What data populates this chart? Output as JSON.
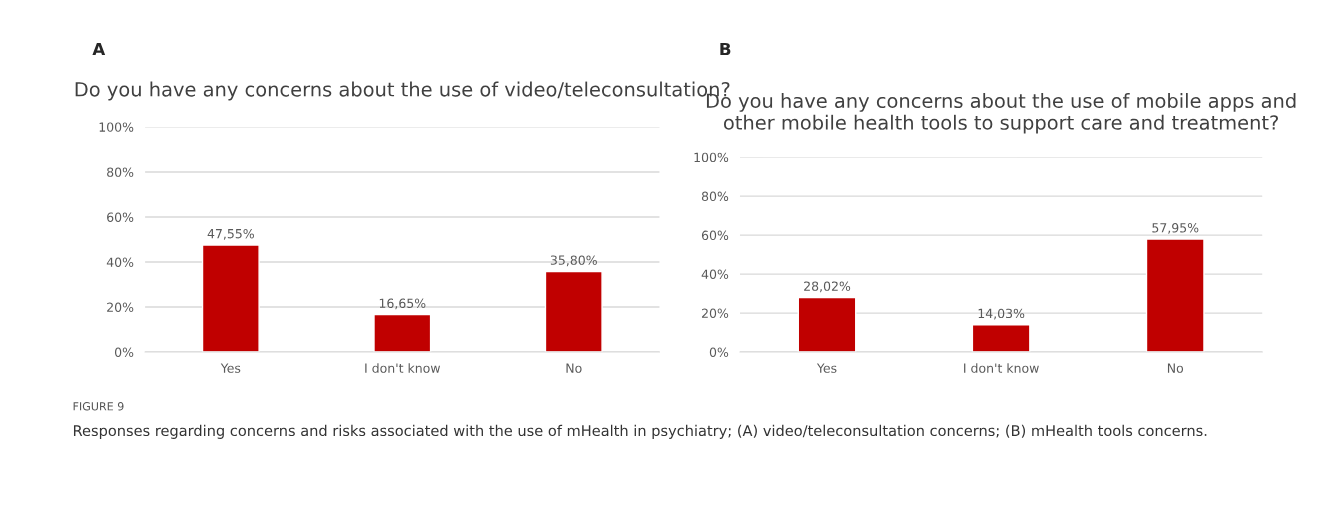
{
  "chart_data": [
    {
      "type": "bar",
      "title": "Do you have any concerns about the use of video/teleconsultation?",
      "categories": [
        "Yes",
        "I don't know",
        "No"
      ],
      "values": [
        47.55,
        16.65,
        35.8
      ],
      "value_labels": [
        "47,55%",
        "16,65%",
        "35,80%"
      ],
      "color": "#c00000",
      "ylim": [
        0,
        100
      ],
      "yticks": [
        {
          "value": 0,
          "label": "0%"
        },
        {
          "value": 20,
          "label": "20%"
        },
        {
          "value": 40,
          "label": "40%"
        },
        {
          "value": 60,
          "label": "60%"
        },
        {
          "value": 80,
          "label": "80%"
        },
        {
          "value": 100,
          "label": "100%"
        }
      ],
      "grid": "y",
      "annotations": [
        "A",
        "FIGURE 9",
        "Responses regarding concerns and risks associated with the use of mHealth in psychiatry; (A) video/teleconsultation concerns; (B) mHealth tools concerns."
      ]
    },
    {
      "type": "bar",
      "title": "Do you have any concerns about the use of mobile apps and other mobile health tools to support care and treatment?",
      "categories": [
        "Yes",
        "I don't know",
        "No"
      ],
      "values": [
        28.02,
        14.03,
        57.95
      ],
      "value_labels": [
        "28,02%",
        "14,03%",
        "57,95%"
      ],
      "color": "#c00000",
      "ylim": [
        0,
        100
      ],
      "yticks": [
        {
          "value": 0,
          "label": "0%"
        },
        {
          "value": 20,
          "label": "20%"
        },
        {
          "value": 40,
          "label": "40%"
        },
        {
          "value": 60,
          "label": "60%"
        },
        {
          "value": 80,
          "label": "80%"
        },
        {
          "value": 100,
          "label": "100%"
        }
      ],
      "grid": "y",
      "annotations": [
        "B"
      ]
    }
  ]
}
